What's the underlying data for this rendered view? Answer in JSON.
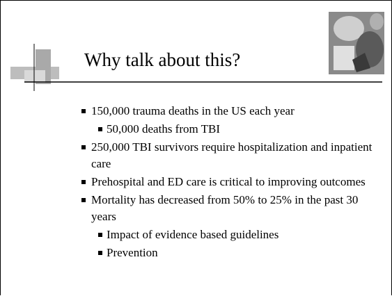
{
  "slide": {
    "title": "Why talk about this?",
    "bullets": [
      {
        "level": 1,
        "text": "150,000 trauma deaths in the US each year"
      },
      {
        "level": 2,
        "text": "50,000 deaths from TBI"
      },
      {
        "level": 1,
        "text": "250,000 TBI survivors require hospitalization and inpatient care"
      },
      {
        "level": 1,
        "text": "Prehospital and ED care is critical to improving outcomes"
      },
      {
        "level": 1,
        "text": "Mortality has decreased from 50% to 25% in the past 30 years"
      },
      {
        "level": 2,
        "text": "Impact of evidence based guidelines"
      },
      {
        "level": 2,
        "text": "Prevention"
      }
    ]
  }
}
